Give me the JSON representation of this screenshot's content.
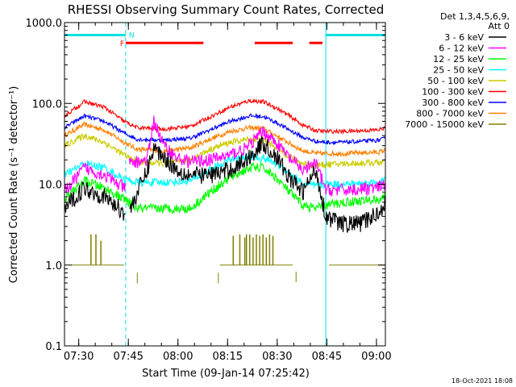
{
  "chart_data": {
    "type": "line",
    "title": "RHESSI Observing Summary Count Rates, Corrected",
    "ylabel": "Corrected Count Rate (s⁻¹ detector⁻¹)",
    "xlabel": "Start Time (09-Jan-14 07:25:42)",
    "x_unit": "minutes after 07:25:42",
    "y_scale": "log",
    "xlim": [
      0,
      97
    ],
    "ylim": [
      0.1,
      1000
    ],
    "x_ticks": [
      {
        "x": 4.3,
        "label": "07:30"
      },
      {
        "x": 19.3,
        "label": "07:45"
      },
      {
        "x": 34.3,
        "label": "08:00"
      },
      {
        "x": 49.3,
        "label": "08:15"
      },
      {
        "x": 64.3,
        "label": "08:30"
      },
      {
        "x": 79.3,
        "label": "08:45"
      },
      {
        "x": 94.3,
        "label": "09:00"
      }
    ],
    "y_ticks": [
      {
        "y": 1000,
        "label": "1000.0"
      },
      {
        "y": 100,
        "label": "100.0"
      },
      {
        "y": 10,
        "label": "10.0"
      },
      {
        "y": 1,
        "label": "1.0"
      },
      {
        "y": 0.1,
        "label": "0.1"
      }
    ],
    "legend_header": [
      "Det 1,3,4,5,6,9,",
      "Att 0"
    ],
    "legend_position": "right",
    "footer_date": "18-Oct-2021 18:08",
    "night_boundaries": [
      0,
      18.5,
      79,
      97
    ],
    "night_flag_y": 700,
    "flare_flag_y": 560,
    "flags": [
      {
        "label": "N",
        "color": "#00e0e0",
        "x0": 0,
        "x1": 18.5
      },
      {
        "label": "",
        "color": "#00e0e0",
        "x0": 79,
        "x1": 97
      },
      {
        "label": "F",
        "color": "#ff0000",
        "x0": 18.5,
        "x1": 42
      },
      {
        "label": "",
        "color": "#ff0000",
        "x0": 57.5,
        "x1": 69
      },
      {
        "label": "",
        "color": "#ff0000",
        "x0": 74,
        "x1": 78
      }
    ],
    "series": [
      {
        "name": "3 - 6 keV",
        "color": "#000000",
        "noise": 0.22,
        "gap": [
          18.5,
          19.5
        ],
        "points": [
          [
            0,
            5
          ],
          [
            6,
            9
          ],
          [
            12,
            7
          ],
          [
            18,
            4.5
          ],
          [
            18.5,
            4.5
          ],
          [
            19.5,
            4.5
          ],
          [
            25,
            15
          ],
          [
            27,
            28
          ],
          [
            30,
            22
          ],
          [
            34,
            15
          ],
          [
            38,
            13
          ],
          [
            44,
            13
          ],
          [
            50,
            15
          ],
          [
            55,
            20
          ],
          [
            60,
            32
          ],
          [
            64,
            22
          ],
          [
            68,
            12
          ],
          [
            72,
            8
          ],
          [
            76,
            15
          ],
          [
            79,
            4
          ],
          [
            84,
            3.2
          ],
          [
            90,
            3.3
          ],
          [
            95,
            4.5
          ],
          [
            97,
            6
          ]
        ]
      },
      {
        "name": "6 - 12 keV",
        "color": "#ff00ff",
        "noise": 0.16,
        "gap": [
          18.5,
          19.5
        ],
        "points": [
          [
            0,
            8
          ],
          [
            6,
            16
          ],
          [
            12,
            13
          ],
          [
            18,
            9
          ],
          [
            18.5,
            9
          ],
          [
            19.5,
            18
          ],
          [
            25,
            20
          ],
          [
            27,
            62
          ],
          [
            30,
            30
          ],
          [
            34,
            21
          ],
          [
            38,
            19
          ],
          [
            44,
            20
          ],
          [
            50,
            23
          ],
          [
            55,
            28
          ],
          [
            60,
            45
          ],
          [
            64,
            33
          ],
          [
            68,
            21
          ],
          [
            72,
            15
          ],
          [
            76,
            18
          ],
          [
            79,
            8.5
          ],
          [
            85,
            8.5
          ],
          [
            95,
            9
          ],
          [
            97,
            10
          ]
        ]
      },
      {
        "name": "12 - 25 keV",
        "color": "#00ff00",
        "noise": 0.12,
        "points": [
          [
            0,
            6.5
          ],
          [
            6,
            11
          ],
          [
            12,
            9
          ],
          [
            18,
            6.5
          ],
          [
            22,
            5
          ],
          [
            30,
            5
          ],
          [
            38,
            5
          ],
          [
            44,
            8
          ],
          [
            50,
            12
          ],
          [
            56,
            16
          ],
          [
            60,
            16
          ],
          [
            64,
            12
          ],
          [
            68,
            8
          ],
          [
            72,
            5.5
          ],
          [
            76,
            5
          ],
          [
            79,
            5.5
          ],
          [
            85,
            6
          ],
          [
            95,
            6.5
          ],
          [
            97,
            7
          ]
        ]
      },
      {
        "name": "25 - 50 keV",
        "color": "#00ffff",
        "noise": 0.1,
        "points": [
          [
            0,
            13
          ],
          [
            6,
            18
          ],
          [
            12,
            16
          ],
          [
            18,
            11.5
          ],
          [
            22,
            10.5
          ],
          [
            30,
            10.5
          ],
          [
            38,
            11
          ],
          [
            44,
            15
          ],
          [
            50,
            20
          ],
          [
            56,
            22
          ],
          [
            60,
            21
          ],
          [
            64,
            18
          ],
          [
            68,
            14
          ],
          [
            72,
            10
          ],
          [
            76,
            9.5
          ],
          [
            79,
            10
          ],
          [
            85,
            10
          ],
          [
            95,
            10.5
          ],
          [
            97,
            11.5
          ]
        ]
      },
      {
        "name": "50 - 100 keV",
        "color": "#cccc00",
        "noise": 0.08,
        "points": [
          [
            0,
            30
          ],
          [
            6,
            40
          ],
          [
            12,
            33
          ],
          [
            18,
            23
          ],
          [
            22,
            19
          ],
          [
            30,
            18
          ],
          [
            38,
            20
          ],
          [
            44,
            27
          ],
          [
            50,
            33
          ],
          [
            56,
            36
          ],
          [
            60,
            35
          ],
          [
            64,
            29
          ],
          [
            68,
            22
          ],
          [
            72,
            18
          ],
          [
            76,
            17
          ],
          [
            79,
            17.5
          ],
          [
            85,
            18
          ],
          [
            95,
            18.5
          ],
          [
            97,
            19
          ]
        ]
      },
      {
        "name": "100 - 300 keV",
        "color": "#ff0000",
        "noise": 0.05,
        "points": [
          [
            0,
            70
          ],
          [
            6,
            105
          ],
          [
            12,
            90
          ],
          [
            18,
            60
          ],
          [
            22,
            50
          ],
          [
            30,
            48
          ],
          [
            38,
            52
          ],
          [
            44,
            68
          ],
          [
            50,
            90
          ],
          [
            56,
            108
          ],
          [
            60,
            105
          ],
          [
            64,
            88
          ],
          [
            68,
            70
          ],
          [
            72,
            54
          ],
          [
            76,
            46
          ],
          [
            79,
            45
          ],
          [
            85,
            45
          ],
          [
            95,
            47
          ],
          [
            97,
            50
          ]
        ]
      },
      {
        "name": "300 - 800 keV",
        "color": "#0000ff",
        "noise": 0.05,
        "points": [
          [
            0,
            50
          ],
          [
            6,
            70
          ],
          [
            12,
            60
          ],
          [
            18,
            43
          ],
          [
            22,
            36
          ],
          [
            30,
            35
          ],
          [
            38,
            37
          ],
          [
            44,
            47
          ],
          [
            50,
            60
          ],
          [
            56,
            70
          ],
          [
            60,
            69
          ],
          [
            64,
            58
          ],
          [
            68,
            47
          ],
          [
            72,
            38
          ],
          [
            76,
            34
          ],
          [
            79,
            33
          ],
          [
            85,
            33
          ],
          [
            95,
            35
          ],
          [
            97,
            37
          ]
        ]
      },
      {
        "name": "800 - 7000 keV",
        "color": "#ff8000",
        "noise": 0.06,
        "points": [
          [
            0,
            40
          ],
          [
            6,
            55
          ],
          [
            12,
            47
          ],
          [
            18,
            33
          ],
          [
            22,
            27
          ],
          [
            30,
            26
          ],
          [
            38,
            28
          ],
          [
            44,
            36
          ],
          [
            50,
            45
          ],
          [
            56,
            50
          ],
          [
            60,
            49
          ],
          [
            64,
            40
          ],
          [
            68,
            32
          ],
          [
            72,
            26
          ],
          [
            76,
            24
          ],
          [
            79,
            24
          ],
          [
            85,
            24
          ],
          [
            95,
            25
          ],
          [
            97,
            26
          ]
        ]
      },
      {
        "name": "7000 - 15000 keV",
        "color": "#808000",
        "noise": 0,
        "style": "bursts",
        "base": 1.0,
        "segments": [
          [
            2,
            18
          ],
          [
            47,
            69
          ],
          [
            80,
            97
          ]
        ],
        "spikes": [
          [
            8,
            2.4
          ],
          [
            9.5,
            2.4
          ],
          [
            11,
            2.0
          ],
          [
            51,
            2.3
          ],
          [
            53,
            2.4
          ],
          [
            54.5,
            2.2
          ],
          [
            55,
            2.4
          ],
          [
            56,
            2.4
          ],
          [
            57,
            2.2
          ],
          [
            58,
            2.4
          ],
          [
            59,
            2.3
          ],
          [
            60,
            2.4
          ],
          [
            61,
            2.2
          ],
          [
            62,
            2.4
          ],
          [
            63,
            2.3
          ]
        ],
        "isolated": [
          [
            22,
            0.7
          ],
          [
            46.5,
            0.7
          ],
          [
            70,
            0.72
          ]
        ]
      }
    ]
  }
}
